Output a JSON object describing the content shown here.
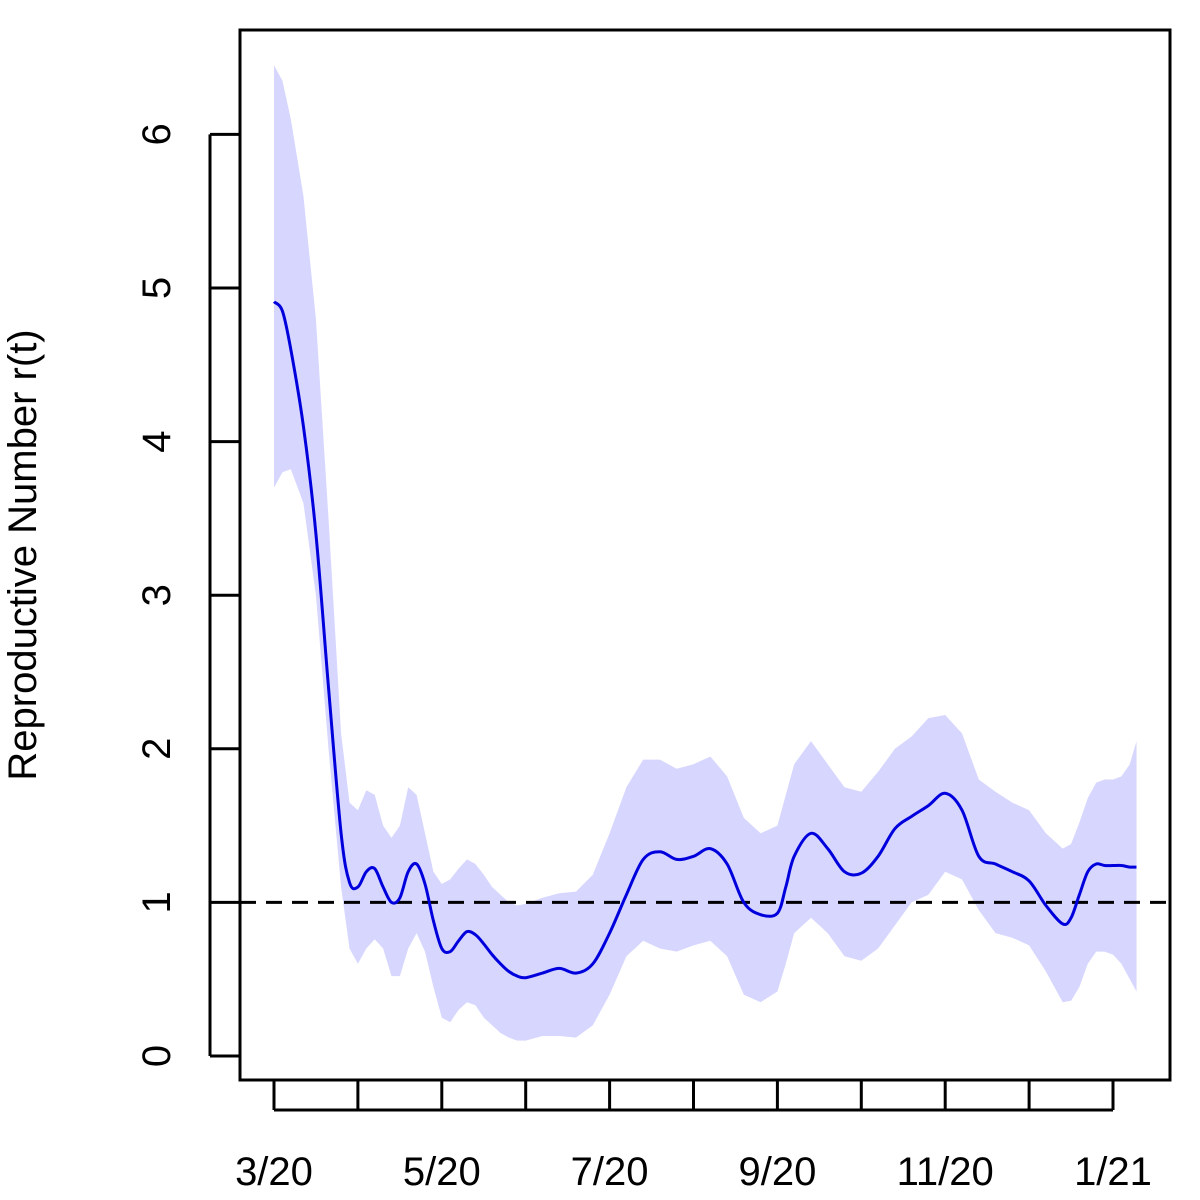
{
  "chart_data": {
    "type": "line",
    "title": "",
    "xlabel": "",
    "ylabel": "Reproductive Number r(t)",
    "ylim": [
      0,
      6.5
    ],
    "xlim": [
      -0.4,
      10.7
    ],
    "y_ticks": [
      0,
      1,
      2,
      3,
      4,
      5,
      6
    ],
    "y_tick_labels": [
      "0",
      "1",
      "2",
      "3",
      "4",
      "5",
      "6"
    ],
    "x_ticks": [
      0,
      1,
      2,
      3,
      4,
      5,
      6,
      7,
      8,
      9,
      10
    ],
    "x_tick_labels": [
      {
        "pos": 0,
        "label": "3/20"
      },
      {
        "pos": 2,
        "label": "5/20"
      },
      {
        "pos": 4,
        "label": "7/20"
      },
      {
        "pos": 6,
        "label": "9/20"
      },
      {
        "pos": 8,
        "label": "11/20"
      },
      {
        "pos": 10,
        "label": "1/21"
      }
    ],
    "reference_line": {
      "y": 1,
      "style": "dashed"
    },
    "series": [
      {
        "name": "r(t)",
        "color": "#0000dd",
        "band_color": "#d6d6ff",
        "x": [
          0.0,
          0.1,
          0.2,
          0.35,
          0.5,
          0.65,
          0.8,
          0.9,
          1.0,
          1.1,
          1.2,
          1.3,
          1.4,
          1.5,
          1.6,
          1.7,
          1.8,
          1.9,
          2.0,
          2.1,
          2.2,
          2.3,
          2.4,
          2.5,
          2.6,
          2.7,
          2.8,
          2.9,
          3.0,
          3.2,
          3.4,
          3.6,
          3.8,
          4.0,
          4.2,
          4.4,
          4.6,
          4.8,
          5.0,
          5.2,
          5.4,
          5.6,
          5.8,
          6.0,
          6.1,
          6.2,
          6.4,
          6.6,
          6.8,
          7.0,
          7.2,
          7.4,
          7.6,
          7.8,
          8.0,
          8.2,
          8.4,
          8.6,
          8.8,
          9.0,
          9.2,
          9.4,
          9.5,
          9.6,
          9.7,
          9.8,
          9.9,
          10.0,
          10.1,
          10.2,
          10.28
        ],
        "y": [
          4.91,
          4.85,
          4.6,
          4.1,
          3.4,
          2.4,
          1.45,
          1.13,
          1.1,
          1.2,
          1.22,
          1.1,
          1.0,
          1.03,
          1.2,
          1.25,
          1.12,
          0.88,
          0.7,
          0.68,
          0.75,
          0.81,
          0.79,
          0.73,
          0.66,
          0.6,
          0.55,
          0.52,
          0.51,
          0.54,
          0.57,
          0.54,
          0.6,
          0.8,
          1.05,
          1.28,
          1.33,
          1.28,
          1.3,
          1.35,
          1.25,
          1.0,
          0.92,
          0.93,
          1.1,
          1.3,
          1.45,
          1.35,
          1.2,
          1.19,
          1.3,
          1.48,
          1.56,
          1.63,
          1.71,
          1.6,
          1.3,
          1.25,
          1.2,
          1.14,
          0.98,
          0.86,
          0.9,
          1.05,
          1.2,
          1.25,
          1.24,
          1.24,
          1.24,
          1.23,
          1.23
        ],
        "lower": [
          3.7,
          3.8,
          3.82,
          3.6,
          3.0,
          2.0,
          1.1,
          0.7,
          0.6,
          0.7,
          0.76,
          0.7,
          0.52,
          0.52,
          0.7,
          0.8,
          0.68,
          0.45,
          0.25,
          0.22,
          0.3,
          0.35,
          0.33,
          0.25,
          0.2,
          0.15,
          0.12,
          0.1,
          0.1,
          0.13,
          0.13,
          0.12,
          0.2,
          0.4,
          0.65,
          0.75,
          0.7,
          0.68,
          0.72,
          0.75,
          0.65,
          0.4,
          0.35,
          0.42,
          0.6,
          0.8,
          0.9,
          0.8,
          0.65,
          0.62,
          0.7,
          0.85,
          1.0,
          1.05,
          1.2,
          1.15,
          0.95,
          0.8,
          0.77,
          0.72,
          0.55,
          0.35,
          0.36,
          0.45,
          0.6,
          0.68,
          0.68,
          0.66,
          0.6,
          0.5,
          0.42
        ],
        "upper": [
          6.45,
          6.35,
          6.1,
          5.6,
          4.8,
          3.5,
          2.1,
          1.65,
          1.6,
          1.73,
          1.7,
          1.5,
          1.42,
          1.5,
          1.75,
          1.7,
          1.45,
          1.2,
          1.12,
          1.15,
          1.22,
          1.28,
          1.25,
          1.18,
          1.1,
          1.05,
          1.0,
          0.98,
          0.99,
          1.03,
          1.06,
          1.07,
          1.18,
          1.45,
          1.75,
          1.93,
          1.93,
          1.87,
          1.9,
          1.95,
          1.82,
          1.55,
          1.45,
          1.5,
          1.7,
          1.9,
          2.05,
          1.9,
          1.75,
          1.72,
          1.85,
          2.0,
          2.08,
          2.2,
          2.22,
          2.1,
          1.8,
          1.72,
          1.65,
          1.6,
          1.45,
          1.35,
          1.38,
          1.52,
          1.68,
          1.78,
          1.8,
          1.8,
          1.82,
          1.9,
          2.05
        ]
      }
    ]
  }
}
